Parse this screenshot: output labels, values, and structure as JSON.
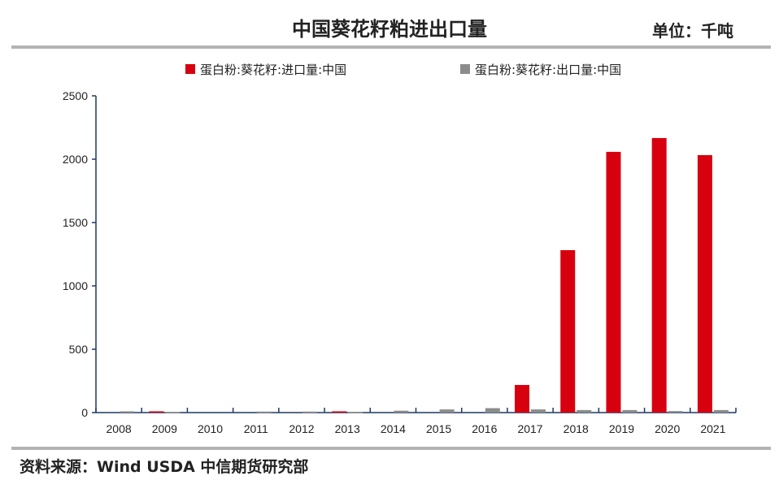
{
  "header": {
    "title": "中国葵花籽粕进出口量",
    "unit": "单位：千吨"
  },
  "footer": {
    "source": "资料来源：Wind USDA 中信期货研究部"
  },
  "chart_data": {
    "type": "bar",
    "title": "中国葵花籽粕进出口量",
    "categories": [
      "2008",
      "2009",
      "2010",
      "2011",
      "2012",
      "2013",
      "2014",
      "2015",
      "2016",
      "2017",
      "2018",
      "2019",
      "2020",
      "2021"
    ],
    "series": [
      {
        "name": "蛋白粉:葵花籽:进口量:中国",
        "color": "#d7000f",
        "values": [
          0,
          10,
          0,
          0,
          0,
          10,
          0,
          0,
          0,
          218,
          1282,
          2058,
          2167,
          2032
        ]
      },
      {
        "name": "蛋白粉:葵花籽:出口量:中国",
        "color": "#8c8c8c",
        "values": [
          10,
          3,
          0,
          8,
          8,
          5,
          15,
          25,
          35,
          25,
          20,
          20,
          12,
          20
        ]
      }
    ],
    "ylim": [
      0,
      2500
    ],
    "yticks": [
      0,
      500,
      1000,
      1500,
      2000,
      2500
    ],
    "grid": false,
    "legend": "top"
  }
}
